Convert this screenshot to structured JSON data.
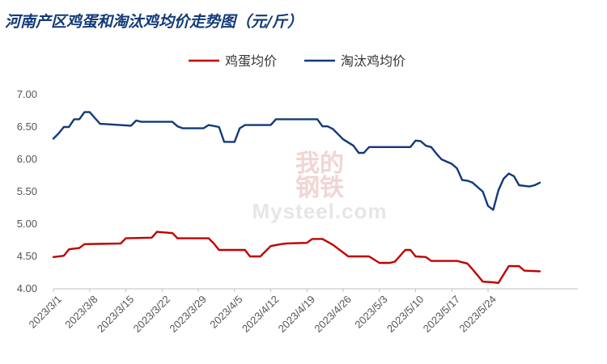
{
  "chart_data": {
    "type": "line",
    "title": "河南产区鸡蛋和淘汰鸡均价走势图（元/斤）",
    "x_tick_labels": [
      "2023/3/1",
      "2023/3/8",
      "2023/3/15",
      "2023/3/22",
      "2023/3/29",
      "2023/4/5",
      "2023/4/12",
      "2023/4/19",
      "2023/4/26",
      "2023/5/3",
      "2023/5/10",
      "2023/5/17",
      "2023/5/24"
    ],
    "x_range": [
      "2023-03-01",
      "2023-05-29"
    ],
    "ylim": [
      4.0,
      7.0
    ],
    "y_ticks": [
      "4.00",
      "4.50",
      "5.00",
      "5.50",
      "6.00",
      "6.50",
      "7.00"
    ],
    "grid": false,
    "legend_position": "top-center",
    "series": [
      {
        "name": "鸡蛋均价",
        "color": "#c00000",
        "points": [
          [
            "2023-03-01",
            4.49
          ],
          [
            "2023-03-03",
            4.51
          ],
          [
            "2023-03-04",
            4.61
          ],
          [
            "2023-03-06",
            4.63
          ],
          [
            "2023-03-07",
            4.69
          ],
          [
            "2023-03-14",
            4.7
          ],
          [
            "2023-03-15",
            4.78
          ],
          [
            "2023-03-20",
            4.79
          ],
          [
            "2023-03-21",
            4.88
          ],
          [
            "2023-03-24",
            4.86
          ],
          [
            "2023-03-25",
            4.78
          ],
          [
            "2023-03-31",
            4.78
          ],
          [
            "2023-04-01",
            4.7
          ],
          [
            "2023-04-02",
            4.6
          ],
          [
            "2023-04-07",
            4.6
          ],
          [
            "2023-04-08",
            4.5
          ],
          [
            "2023-04-10",
            4.5
          ],
          [
            "2023-04-12",
            4.66
          ],
          [
            "2023-04-14",
            4.69
          ],
          [
            "2023-04-15",
            4.7
          ],
          [
            "2023-04-19",
            4.71
          ],
          [
            "2023-04-20",
            4.77
          ],
          [
            "2023-04-22",
            4.77
          ],
          [
            "2023-04-24",
            4.68
          ],
          [
            "2023-04-27",
            4.5
          ],
          [
            "2023-05-01",
            4.5
          ],
          [
            "2023-05-03",
            4.4
          ],
          [
            "2023-05-05",
            4.4
          ],
          [
            "2023-05-06",
            4.42
          ],
          [
            "2023-05-08",
            4.6
          ],
          [
            "2023-05-09",
            4.6
          ],
          [
            "2023-05-10",
            4.5
          ],
          [
            "2023-05-12",
            4.49
          ],
          [
            "2023-05-13",
            4.43
          ],
          [
            "2023-05-18",
            4.43
          ],
          [
            "2023-05-20",
            4.39
          ],
          [
            "2023-05-21",
            4.3
          ],
          [
            "2023-05-23",
            4.11
          ],
          [
            "2023-05-25",
            4.1
          ],
          [
            "2023-05-26",
            4.09
          ],
          [
            "2023-05-27",
            4.22
          ],
          [
            "2023-05-28",
            4.35
          ],
          [
            "2023-05-30",
            4.35
          ],
          [
            "2023-05-31",
            4.28
          ],
          [
            "2023-06-03",
            4.27
          ]
        ]
      },
      {
        "name": "淘汰鸡均价",
        "color": "#123a7a",
        "points": [
          [
            "2023-03-01",
            6.32
          ],
          [
            "2023-03-02",
            6.4
          ],
          [
            "2023-03-03",
            6.5
          ],
          [
            "2023-03-04",
            6.5
          ],
          [
            "2023-03-05",
            6.62
          ],
          [
            "2023-03-06",
            6.62
          ],
          [
            "2023-03-07",
            6.73
          ],
          [
            "2023-03-08",
            6.73
          ],
          [
            "2023-03-10",
            6.55
          ],
          [
            "2023-03-16",
            6.52
          ],
          [
            "2023-03-17",
            6.6
          ],
          [
            "2023-03-18",
            6.58
          ],
          [
            "2023-03-24",
            6.58
          ],
          [
            "2023-03-25",
            6.51
          ],
          [
            "2023-03-26",
            6.48
          ],
          [
            "2023-03-30",
            6.48
          ],
          [
            "2023-03-31",
            6.53
          ],
          [
            "2023-04-02",
            6.5
          ],
          [
            "2023-04-03",
            6.27
          ],
          [
            "2023-04-05",
            6.27
          ],
          [
            "2023-04-06",
            6.48
          ],
          [
            "2023-04-07",
            6.53
          ],
          [
            "2023-04-12",
            6.53
          ],
          [
            "2023-04-13",
            6.62
          ],
          [
            "2023-04-21",
            6.62
          ],
          [
            "2023-04-22",
            6.51
          ],
          [
            "2023-04-23",
            6.51
          ],
          [
            "2023-04-24",
            6.47
          ],
          [
            "2023-04-26",
            6.31
          ],
          [
            "2023-04-28",
            6.21
          ],
          [
            "2023-04-29",
            6.1
          ],
          [
            "2023-04-30",
            6.1
          ],
          [
            "2023-05-01",
            6.19
          ],
          [
            "2023-05-09",
            6.19
          ],
          [
            "2023-05-10",
            6.29
          ],
          [
            "2023-05-11",
            6.28
          ],
          [
            "2023-05-12",
            6.21
          ],
          [
            "2023-05-13",
            6.19
          ],
          [
            "2023-05-14",
            6.09
          ],
          [
            "2023-05-15",
            6.0
          ],
          [
            "2023-05-17",
            5.93
          ],
          [
            "2023-05-18",
            5.86
          ],
          [
            "2023-05-19",
            5.68
          ],
          [
            "2023-05-20",
            5.67
          ],
          [
            "2023-05-21",
            5.64
          ],
          [
            "2023-05-23",
            5.5
          ],
          [
            "2023-05-24",
            5.28
          ],
          [
            "2023-05-25",
            5.22
          ],
          [
            "2023-05-26",
            5.52
          ],
          [
            "2023-05-27",
            5.7
          ],
          [
            "2023-05-28",
            5.78
          ],
          [
            "2023-05-29",
            5.74
          ],
          [
            "2023-05-30",
            5.6
          ],
          [
            "2023-06-01",
            5.58
          ],
          [
            "2023-06-02",
            5.6
          ],
          [
            "2023-06-03",
            5.64
          ]
        ]
      }
    ]
  },
  "watermark": {
    "seal_text": "我的钢铁",
    "site_text": "Mysteel.com"
  }
}
